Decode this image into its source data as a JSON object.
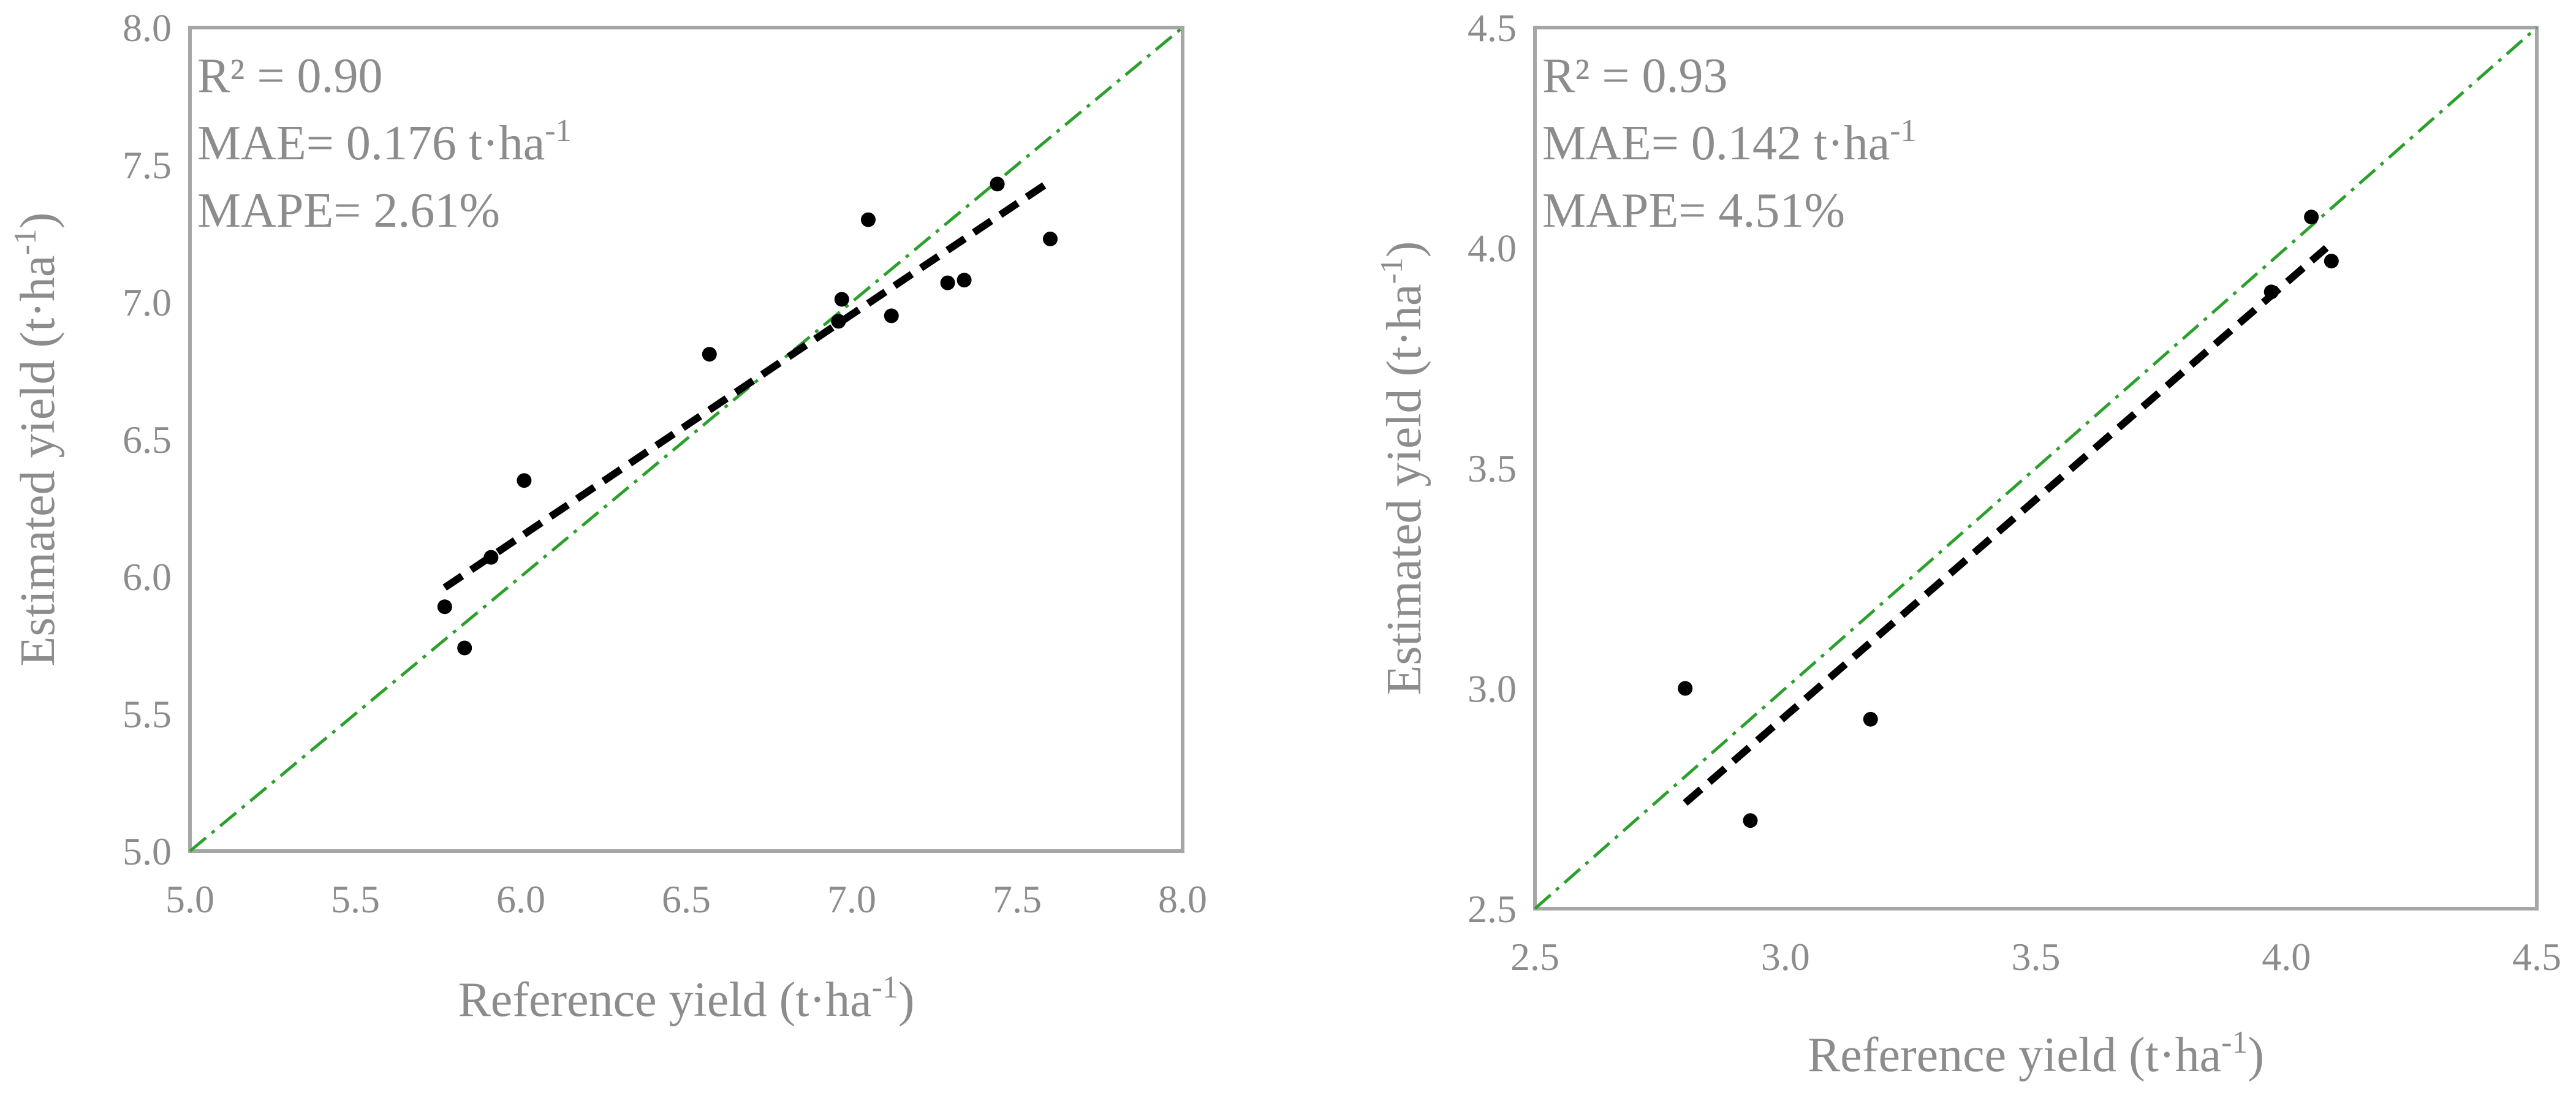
{
  "chart_data": [
    {
      "type": "scatter",
      "title": "",
      "xlabel": "Reference yield (t·ha",
      "ylabel": "Estimated yield (t·ha",
      "unit_sup": "-1",
      "xlim": [
        5.0,
        8.0
      ],
      "ylim": [
        5.0,
        8.0
      ],
      "xticks": [
        "5.0",
        "5.5",
        "6.0",
        "6.5",
        "7.0",
        "7.5",
        "8.0"
      ],
      "yticks": [
        "5.0",
        "5.5",
        "6.0",
        "6.5",
        "7.0",
        "7.5",
        "8.0"
      ],
      "grid": false,
      "stats": {
        "r2": "R² = 0.90",
        "mae": "MAE= 0.176 t·ha",
        "mae_sup": "-1",
        "mape": "MAPE= 2.61%"
      },
      "points": [
        {
          "x": 5.77,
          "y": 5.89
        },
        {
          "x": 5.83,
          "y": 5.74
        },
        {
          "x": 5.91,
          "y": 6.07
        },
        {
          "x": 6.01,
          "y": 6.35
        },
        {
          "x": 6.57,
          "y": 6.81
        },
        {
          "x": 6.96,
          "y": 6.93
        },
        {
          "x": 6.97,
          "y": 7.01
        },
        {
          "x": 7.05,
          "y": 7.3
        },
        {
          "x": 7.12,
          "y": 6.95
        },
        {
          "x": 7.29,
          "y": 7.07
        },
        {
          "x": 7.34,
          "y": 7.08
        },
        {
          "x": 7.44,
          "y": 7.43
        },
        {
          "x": 7.6,
          "y": 7.23
        }
      ],
      "trendline": {
        "x1": 5.77,
        "y1": 5.96,
        "x2": 7.6,
        "y2": 7.44,
        "color": "#000000"
      },
      "identity_line": {
        "x1": 5.0,
        "y1": 5.0,
        "x2": 8.0,
        "y2": 8.0,
        "color": "#2ca02c"
      }
    },
    {
      "type": "scatter",
      "title": "",
      "xlabel": "Reference yield (t·ha",
      "ylabel": "Estimated yield (t·ha",
      "unit_sup": "-1",
      "xlim": [
        2.5,
        4.5
      ],
      "ylim": [
        2.5,
        4.5
      ],
      "xticks": [
        "2.5",
        "3.0",
        "3.5",
        "4.0",
        "4.5"
      ],
      "yticks": [
        "2.5",
        "3.0",
        "3.5",
        "4.0",
        "4.5"
      ],
      "grid": false,
      "stats": {
        "r2": "R² = 0.93",
        "mae": "MAE= 0.142 t·ha",
        "mae_sup": "-1",
        "mape": "MAPE= 4.51%"
      },
      "points": [
        {
          "x": 2.8,
          "y": 3.0
        },
        {
          "x": 2.93,
          "y": 2.7
        },
        {
          "x": 3.17,
          "y": 2.93
        },
        {
          "x": 3.97,
          "y": 3.9
        },
        {
          "x": 4.05,
          "y": 4.07
        },
        {
          "x": 4.09,
          "y": 3.97
        }
      ],
      "trendline": {
        "x1": 2.8,
        "y1": 2.74,
        "x2": 4.08,
        "y2": 4.0,
        "color": "#000000"
      },
      "identity_line": {
        "x1": 2.5,
        "y1": 2.5,
        "x2": 4.5,
        "y2": 4.5,
        "color": "#2ca02c"
      }
    }
  ]
}
